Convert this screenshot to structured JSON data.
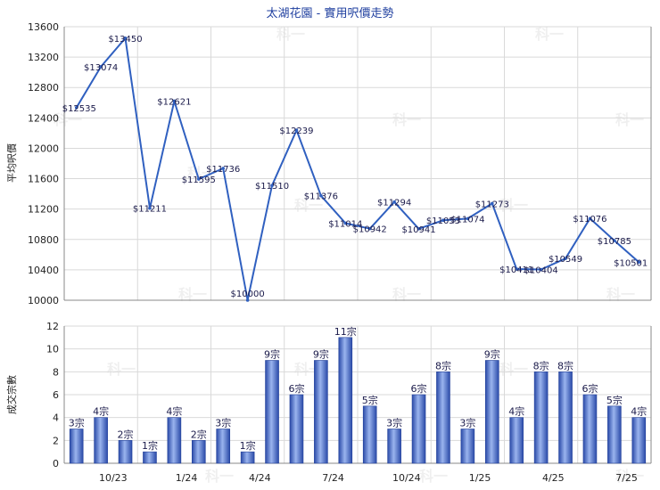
{
  "chart_data": [
    {
      "type": "line",
      "title": "太湖花園 - 實用呎價走勢",
      "ylabel": "平均呎價",
      "ylim": [
        10000,
        13600
      ],
      "yticks": [
        10000,
        10400,
        10800,
        11200,
        11600,
        12000,
        12400,
        12800,
        13200,
        13600
      ],
      "series": [
        {
          "values": [
            12535,
            13074,
            13450,
            11211,
            12621,
            11595,
            11736,
            10000,
            11510,
            12239,
            11376,
            11014,
            10942,
            11294,
            10941,
            11053,
            11074,
            11273,
            10411,
            10404,
            10549,
            11076,
            10785,
            10501
          ],
          "labels": [
            "$12535",
            "$13074",
            "$13450",
            "$11211",
            "$12621",
            "$11595",
            "$11736",
            "$10000",
            "$11510",
            "$12239",
            "$11376",
            "$11014",
            "$10942",
            "$11294",
            "$10941",
            "$11053",
            "$11074",
            "$11273",
            "$10411",
            "$10404",
            "$10549",
            "$11076",
            "$10785",
            "$10501"
          ],
          "color": "#3060c0"
        }
      ],
      "grid": true
    },
    {
      "type": "bar",
      "ylabel": "成交宗數",
      "ylim": [
        0,
        12
      ],
      "yticks": [
        0,
        2,
        4,
        6,
        8,
        10,
        12
      ],
      "x_tick_labels": [
        "10/23",
        "1/24",
        "4/24",
        "7/24",
        "10/24",
        "1/25",
        "4/25",
        "7/25"
      ],
      "series": [
        {
          "values": [
            3,
            4,
            2,
            1,
            4,
            2,
            3,
            1,
            9,
            6,
            9,
            11,
            5,
            3,
            6,
            8,
            3,
            9,
            4,
            8,
            8,
            6,
            5,
            4
          ],
          "labels": [
            "3宗",
            "4宗",
            "2宗",
            "1宗",
            "4宗",
            "2宗",
            "3宗",
            "1宗",
            "9宗",
            "6宗",
            "9宗",
            "11宗",
            "5宗",
            "3宗",
            "6宗",
            "8宗",
            "3宗",
            "9宗",
            "4宗",
            "8宗",
            "8宗",
            "6宗",
            "5宗",
            "4宗"
          ],
          "color": "#3a60c8"
        }
      ],
      "grid": true
    }
  ],
  "watermark": "科一",
  "colors": {
    "line": "#3060c0",
    "bar_dark": "#2a4aa8",
    "bar_light": "#9ab4ee"
  }
}
